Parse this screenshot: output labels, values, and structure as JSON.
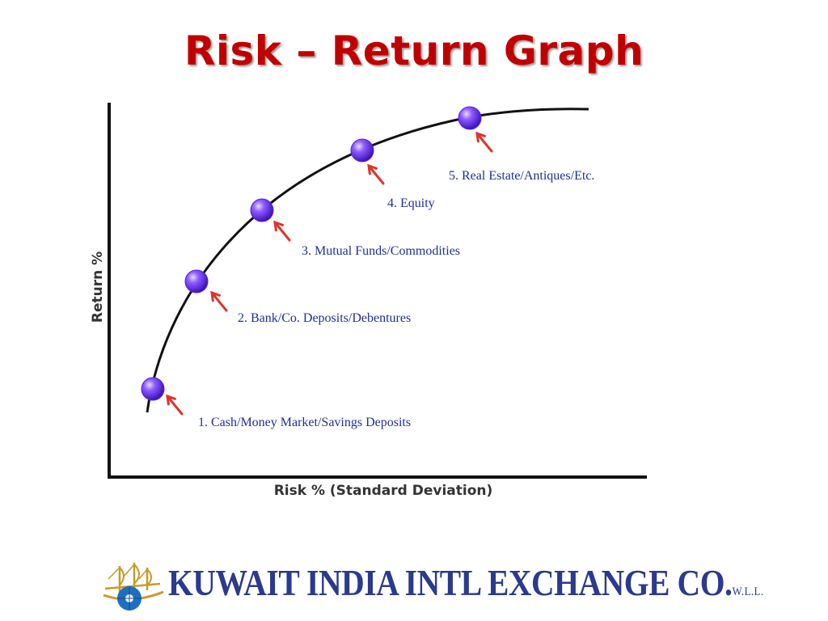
{
  "title": "Risk – Return Graph",
  "chart_data": {
    "type": "line",
    "xlabel": "Risk % (Standard Deviation)",
    "ylabel": "Return %",
    "points": [
      {
        "label": "1. Cash/Money Market/Savings Deposits",
        "x": 1,
        "y": 1
      },
      {
        "label": "2. Bank/Co. Deposits/Debentures",
        "x": 2,
        "y": 2
      },
      {
        "label": "3. Mutual Funds/Commodities",
        "x": 3,
        "y": 3
      },
      {
        "label": "4. Equity",
        "x": 4,
        "y": 4
      },
      {
        "label": "5. Real Estate/Antiques/Etc.",
        "x": 5,
        "y": 5
      }
    ]
  },
  "colors": {
    "title": "#c00000",
    "point": "#5a1ee6",
    "arrow": "#e0342a",
    "label": "#1f2f9e",
    "logo": "#2b3a8c"
  },
  "logo": {
    "name": "KUWAIT INDIA INTL EXCHANGE CO.",
    "suffix": "W.L.L.",
    "icon": "ship-globe-icon"
  }
}
